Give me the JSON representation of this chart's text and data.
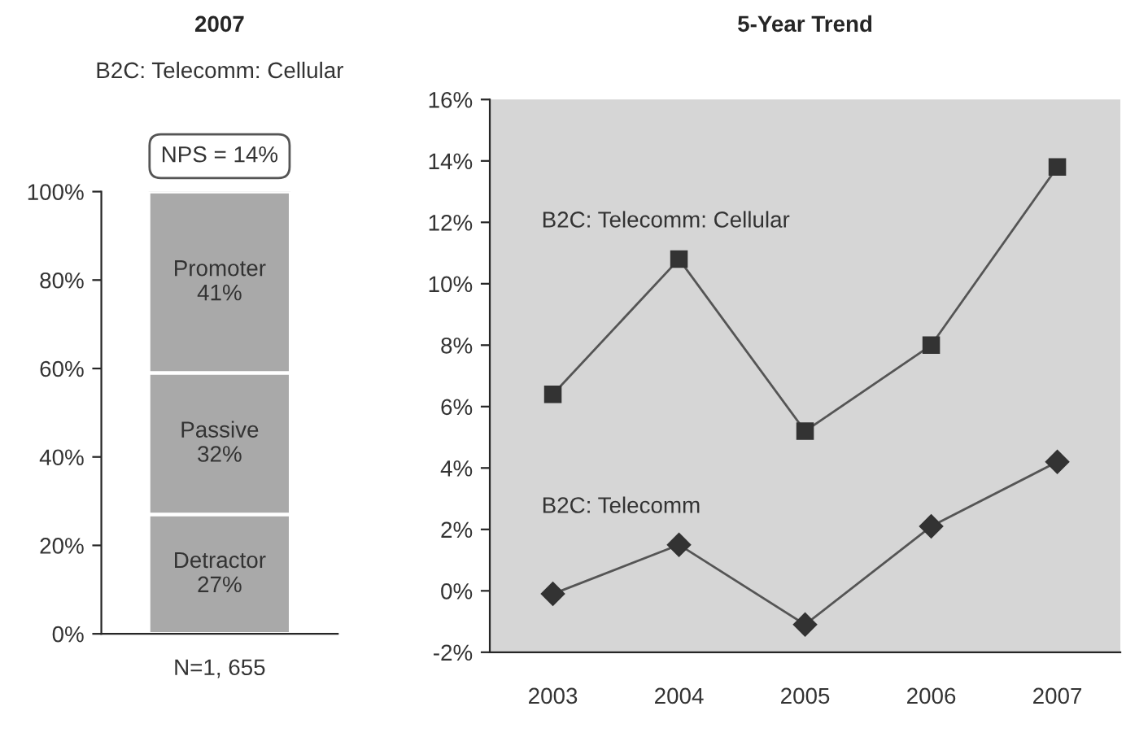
{
  "chart_data": [
    {
      "type": "bar",
      "title": "2007",
      "subtitle": "B2C: Telecomm: Cellular",
      "stacked": true,
      "categories": [
        null
      ],
      "xlabel": "N=1, 655",
      "series": [
        {
          "name": "Detractor",
          "color": "#a9a9a9",
          "values": [
            27
          ],
          "value_labels": [
            "27%"
          ]
        },
        {
          "name": "Passive",
          "color": "#a9a9a9",
          "values": [
            32
          ],
          "value_labels": [
            "32%"
          ]
        },
        {
          "name": "Promoter",
          "color": "#a9a9a9",
          "values": [
            41
          ],
          "value_labels": [
            "41%"
          ]
        }
      ],
      "annotations": [
        "NPS = 14%"
      ],
      "ylim": [
        0,
        100
      ],
      "yticks": [
        {
          "value": 0,
          "label": "0%"
        },
        {
          "value": 20,
          "label": "20%"
        },
        {
          "value": 40,
          "label": "40%"
        },
        {
          "value": 60,
          "label": "60%"
        },
        {
          "value": 80,
          "label": "80%"
        },
        {
          "value": 100,
          "label": "100%"
        }
      ],
      "grid": false,
      "legend": false
    },
    {
      "type": "line",
      "title": "5-Year Trend",
      "categories": [
        "2003",
        "2004",
        "2005",
        "2006",
        "2007"
      ],
      "series": [
        {
          "name": "B2C: Telecomm: Cellular",
          "color": "#555555",
          "marker": "square",
          "values": [
            6.4,
            10.8,
            5.2,
            8.0,
            13.8
          ]
        },
        {
          "name": "B2C: Telecomm",
          "color": "#555555",
          "marker": "diamond",
          "values": [
            -0.1,
            1.5,
            -1.1,
            2.1,
            4.2
          ]
        }
      ],
      "ylim": [
        -2,
        16
      ],
      "yticks": [
        {
          "value": -2,
          "label": "-2%"
        },
        {
          "value": 0,
          "label": "0%"
        },
        {
          "value": 2,
          "label": "2%"
        },
        {
          "value": 4,
          "label": "4%"
        },
        {
          "value": 6,
          "label": "6%"
        },
        {
          "value": 8,
          "label": "8%"
        },
        {
          "value": 10,
          "label": "10%"
        },
        {
          "value": 12,
          "label": "12%"
        },
        {
          "value": 14,
          "label": "14%"
        },
        {
          "value": 16,
          "label": "16%"
        }
      ],
      "grid": false,
      "legend": false,
      "line_style": "solid"
    }
  ]
}
